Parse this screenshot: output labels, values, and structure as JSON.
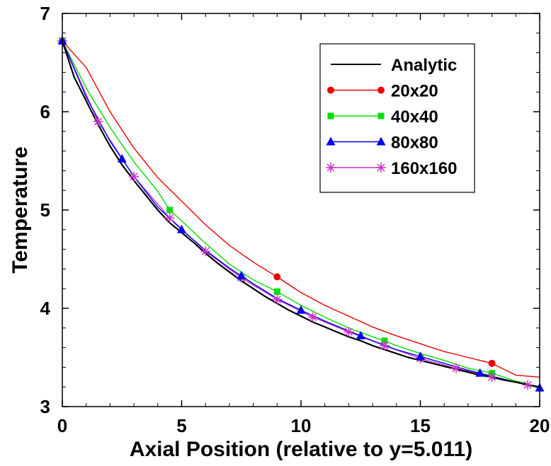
{
  "chart_data": {
    "type": "line",
    "title": "",
    "xlabel": "Axial Position (relative to y=5.011)",
    "ylabel": "Temperature",
    "xlim": [
      0,
      20
    ],
    "ylim": [
      3,
      7
    ],
    "x_ticks": [
      "0",
      "5",
      "10",
      "15",
      "20"
    ],
    "y_ticks": [
      "3",
      "4",
      "5",
      "6",
      "7"
    ],
    "grid": false,
    "legend_position": "top-right",
    "series": [
      {
        "name": "Analytic",
        "color": "#000000",
        "marker": "none",
        "line_x": [
          0,
          0.5,
          1,
          1.5,
          2,
          2.5,
          3,
          3.5,
          4,
          4.5,
          5,
          5.5,
          6,
          6.5,
          7,
          7.5,
          8,
          8.5,
          9,
          9.5,
          10,
          10.5,
          11,
          11.5,
          12,
          12.5,
          13,
          13.5,
          14,
          14.5,
          15,
          15.5,
          16,
          16.5,
          17,
          17.5,
          18,
          18.5,
          19,
          19.5,
          20
        ],
        "line_y": [
          6.72,
          6.35,
          6.11,
          5.87,
          5.65,
          5.46,
          5.3,
          5.15,
          5.0,
          4.87,
          4.77,
          4.67,
          4.56,
          4.46,
          4.37,
          4.28,
          4.2,
          4.12,
          4.05,
          3.98,
          3.92,
          3.86,
          3.81,
          3.76,
          3.71,
          3.67,
          3.62,
          3.58,
          3.54,
          3.5,
          3.47,
          3.44,
          3.41,
          3.38,
          3.35,
          3.32,
          3.3,
          3.27,
          3.25,
          3.22,
          3.2
        ],
        "marker_x": [],
        "marker_y": []
      },
      {
        "name": "20x20",
        "color": "#ee0000",
        "marker": "circle",
        "line_x": [
          0,
          1,
          2,
          3,
          4,
          5,
          6,
          7,
          8,
          9,
          10,
          11,
          12,
          13,
          14,
          15,
          16,
          17,
          18,
          19,
          20
        ],
        "line_y": [
          6.72,
          6.45,
          6.0,
          5.63,
          5.33,
          5.09,
          4.85,
          4.64,
          4.47,
          4.32,
          4.16,
          4.03,
          3.92,
          3.81,
          3.72,
          3.64,
          3.56,
          3.5,
          3.44,
          3.32,
          3.3
        ],
        "marker_x": [
          0,
          9,
          18
        ],
        "marker_y": [
          6.72,
          4.32,
          3.44
        ]
      },
      {
        "name": "40x40",
        "color": "#00dd00",
        "marker": "square",
        "line_x": [
          0,
          1,
          2,
          3,
          4,
          4.5,
          5,
          6,
          7,
          8,
          9,
          10,
          11,
          12,
          13,
          13.5,
          14,
          15,
          16,
          17,
          18,
          19,
          20
        ],
        "line_y": [
          6.72,
          6.24,
          5.84,
          5.49,
          5.19,
          5.0,
          4.89,
          4.66,
          4.45,
          4.29,
          4.17,
          4.03,
          3.91,
          3.8,
          3.71,
          3.67,
          3.62,
          3.54,
          3.47,
          3.39,
          3.34,
          3.26,
          3.2
        ],
        "marker_x": [
          0,
          4.5,
          9,
          13.5,
          18
        ],
        "marker_y": [
          6.72,
          5.0,
          4.17,
          3.67,
          3.34
        ]
      },
      {
        "name": "80x80",
        "color": "#0000ee",
        "marker": "triangle",
        "line_x": [
          0,
          1,
          2,
          2.5,
          3,
          4,
          5,
          6,
          7,
          7.5,
          8,
          9,
          10,
          11,
          12,
          12.5,
          13,
          14,
          15,
          16,
          17,
          17.5,
          18,
          19,
          20
        ],
        "line_y": [
          6.72,
          6.15,
          5.7,
          5.52,
          5.34,
          5.03,
          4.8,
          4.59,
          4.41,
          4.33,
          4.25,
          4.1,
          3.98,
          3.87,
          3.77,
          3.72,
          3.67,
          3.58,
          3.51,
          3.44,
          3.37,
          3.34,
          3.31,
          3.25,
          3.19
        ],
        "marker_x": [
          0,
          2.5,
          5,
          7.5,
          10,
          12.5,
          15,
          17.5,
          20
        ],
        "marker_y": [
          6.72,
          5.52,
          4.8,
          4.33,
          3.98,
          3.72,
          3.51,
          3.34,
          3.19
        ]
      },
      {
        "name": "160x160",
        "color": "#cc33cc",
        "marker": "asterisk",
        "line_x": [
          0,
          1.5,
          3,
          4.5,
          6,
          7.5,
          9,
          10.5,
          12,
          13.5,
          15,
          16.5,
          18,
          19.5
        ],
        "line_y": [
          6.72,
          5.9,
          5.34,
          4.92,
          4.58,
          4.31,
          4.09,
          3.91,
          3.76,
          3.62,
          3.49,
          3.39,
          3.3,
          3.22
        ],
        "marker_x": [
          0,
          1.5,
          3,
          4.5,
          6,
          7.5,
          9,
          10.5,
          12,
          13.5,
          15,
          16.5,
          18,
          19.5
        ],
        "marker_y": [
          6.72,
          5.9,
          5.34,
          4.92,
          4.58,
          4.31,
          4.09,
          3.91,
          3.76,
          3.62,
          3.49,
          3.39,
          3.3,
          3.22
        ]
      }
    ]
  }
}
